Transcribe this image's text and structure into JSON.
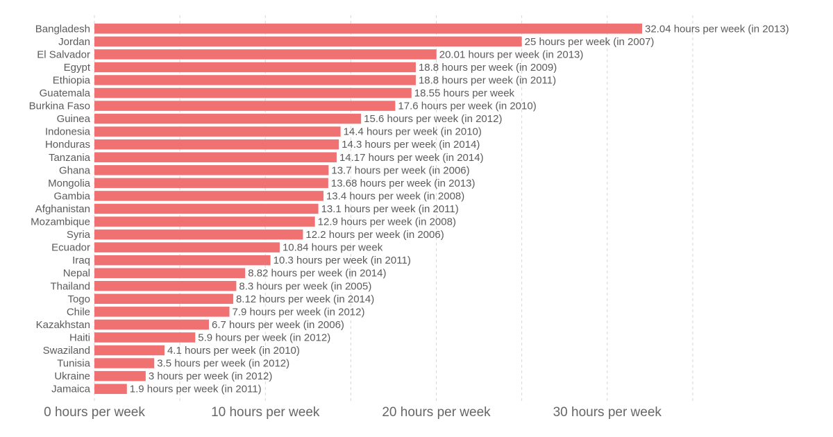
{
  "chart_data": {
    "type": "bar",
    "orientation": "horizontal",
    "unit_suffix": "hours per week",
    "bar_color": "#f07172",
    "grid": true,
    "xlim": [
      0,
      32.04
    ],
    "x_ticks": [
      0,
      10,
      20,
      30
    ],
    "x_tick_labels": [
      "0 hours per week",
      "10 hours per week",
      "20 hours per week",
      "30 hours per week"
    ],
    "categories": [
      "Bangladesh",
      "Jordan",
      "El Salvador",
      "Egypt",
      "Ethiopia",
      "Guatemala",
      "Burkina Faso",
      "Guinea",
      "Indonesia",
      "Honduras",
      "Tanzania",
      "Ghana",
      "Mongolia",
      "Gambia",
      "Afghanistan",
      "Mozambique",
      "Syria",
      "Ecuador",
      "Iraq",
      "Nepal",
      "Thailand",
      "Togo",
      "Chile",
      "Kazakhstan",
      "Haiti",
      "Swaziland",
      "Tunisia",
      "Ukraine",
      "Jamaica"
    ],
    "values": [
      32.04,
      25,
      20.01,
      18.8,
      18.8,
      18.55,
      17.6,
      15.6,
      14.4,
      14.3,
      14.17,
      13.7,
      13.68,
      13.4,
      13.1,
      12.9,
      12.2,
      10.84,
      10.3,
      8.82,
      8.3,
      8.12,
      7.9,
      6.7,
      5.9,
      4.1,
      3.5,
      3,
      1.9
    ],
    "data_labels": [
      "32.04 hours per week (in 2013)",
      "25 hours per week (in 2007)",
      "20.01 hours per week (in 2013)",
      "18.8 hours per week (in 2009)",
      "18.8 hours per week (in 2011)",
      "18.55 hours per week",
      "17.6 hours per week (in 2010)",
      "15.6 hours per week (in 2012)",
      "14.4 hours per week (in 2010)",
      "14.3 hours per week (in 2014)",
      "14.17 hours per week (in 2014)",
      "13.7 hours per week (in 2006)",
      "13.68 hours per week (in 2013)",
      "13.4 hours per week (in 2008)",
      "13.1 hours per week (in 2011)",
      "12.9 hours per week (in 2008)",
      "12.2 hours per week (in 2006)",
      "10.84 hours per week",
      "10.3 hours per week (in 2011)",
      "8.82 hours per week (in 2014)",
      "8.3 hours per week (in 2005)",
      "8.12 hours per week (in 2014)",
      "7.9 hours per week (in 2012)",
      "6.7 hours per week (in 2006)",
      "5.9 hours per week (in 2012)",
      "4.1 hours per week (in 2010)",
      "3.5 hours per week (in 2012)",
      "3 hours per week (in 2012)",
      "1.9 hours per week (in 2011)"
    ]
  }
}
